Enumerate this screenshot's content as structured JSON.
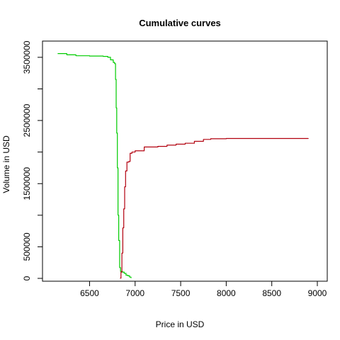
{
  "chart_data": {
    "type": "line",
    "title": "Cumulative curves",
    "xlabel": "Price in USD",
    "ylabel": "Volume in USD",
    "xlim": [
      6100,
      9000
    ],
    "ylim": [
      0,
      3600000
    ],
    "x_ticks": [
      {
        "value": 6500,
        "label": "6500"
      },
      {
        "value": 7000,
        "label": "7000"
      },
      {
        "value": 7500,
        "label": "7500"
      },
      {
        "value": 8000,
        "label": "8000"
      },
      {
        "value": 8500,
        "label": "8500"
      },
      {
        "value": 9000,
        "label": "9000"
      }
    ],
    "y_ticks": [
      {
        "value": 0,
        "label": "0"
      },
      {
        "value": 500000,
        "label": "500000"
      },
      {
        "value": 1000000,
        "label": ""
      },
      {
        "value": 1500000,
        "label": "1500000"
      },
      {
        "value": 2000000,
        "label": ""
      },
      {
        "value": 2500000,
        "label": "2500000"
      },
      {
        "value": 3000000,
        "label": ""
      },
      {
        "value": 3500000,
        "label": "3500000"
      }
    ],
    "grid": false,
    "legend": "none",
    "series": [
      {
        "color": "#00cc00",
        "points": [
          [
            6150,
            3560000
          ],
          [
            6250,
            3540000
          ],
          [
            6350,
            3525000
          ],
          [
            6500,
            3520000
          ],
          [
            6650,
            3515000
          ],
          [
            6700,
            3500000
          ],
          [
            6730,
            3460000
          ],
          [
            6760,
            3420000
          ],
          [
            6775,
            3400000
          ],
          [
            6785,
            3150000
          ],
          [
            6792,
            2700000
          ],
          [
            6798,
            2300000
          ],
          [
            6805,
            1750000
          ],
          [
            6812,
            1000000
          ],
          [
            6820,
            600000
          ],
          [
            6830,
            170000
          ],
          [
            6840,
            110000
          ],
          [
            6860,
            100000
          ],
          [
            6880,
            80000
          ],
          [
            6900,
            50000
          ],
          [
            6920,
            40000
          ],
          [
            6940,
            20000
          ],
          [
            6955,
            5000
          ]
        ]
      },
      {
        "color": "#b2000f",
        "points": [
          [
            6835,
            5000
          ],
          [
            6845,
            100000
          ],
          [
            6855,
            400000
          ],
          [
            6865,
            800000
          ],
          [
            6875,
            1100000
          ],
          [
            6885,
            1450000
          ],
          [
            6895,
            1700000
          ],
          [
            6910,
            1840000
          ],
          [
            6930,
            1850000
          ],
          [
            6945,
            1980000
          ],
          [
            6965,
            2000000
          ],
          [
            7000,
            2020000
          ],
          [
            7100,
            2080000
          ],
          [
            7250,
            2090000
          ],
          [
            7350,
            2110000
          ],
          [
            7450,
            2125000
          ],
          [
            7550,
            2140000
          ],
          [
            7650,
            2170000
          ],
          [
            7750,
            2200000
          ],
          [
            7830,
            2210000
          ],
          [
            8000,
            2215000
          ],
          [
            8500,
            2215000
          ],
          [
            8900,
            2220000
          ]
        ]
      }
    ]
  }
}
